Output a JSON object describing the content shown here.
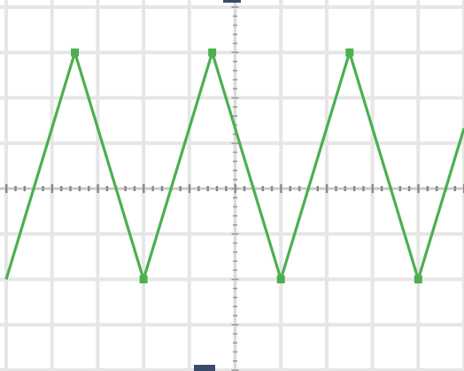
{
  "chart_data": {
    "type": "line",
    "title": "",
    "xlabel": "",
    "ylabel": "",
    "grid": true,
    "legend": "none",
    "xlim": [
      0,
      10
    ],
    "ylim": [
      -4,
      4
    ],
    "series": [
      {
        "values": [
          [
            0,
            -2
          ],
          [
            1.5,
            3
          ],
          [
            3,
            -2
          ],
          [
            4.5,
            3
          ],
          [
            6,
            -2
          ],
          [
            7.5,
            3
          ],
          [
            9,
            -2
          ],
          [
            10,
            1.33
          ]
        ],
        "color": "#4caf50"
      }
    ]
  },
  "colors": {
    "grid_major": "#e6e6e6",
    "center_axis": "#8a8a8a",
    "ground_marker": "#3a4a6a"
  },
  "icons": {
    "top_marker": "ground-marker-icon",
    "bottom_marker": "trigger-marker-icon"
  }
}
